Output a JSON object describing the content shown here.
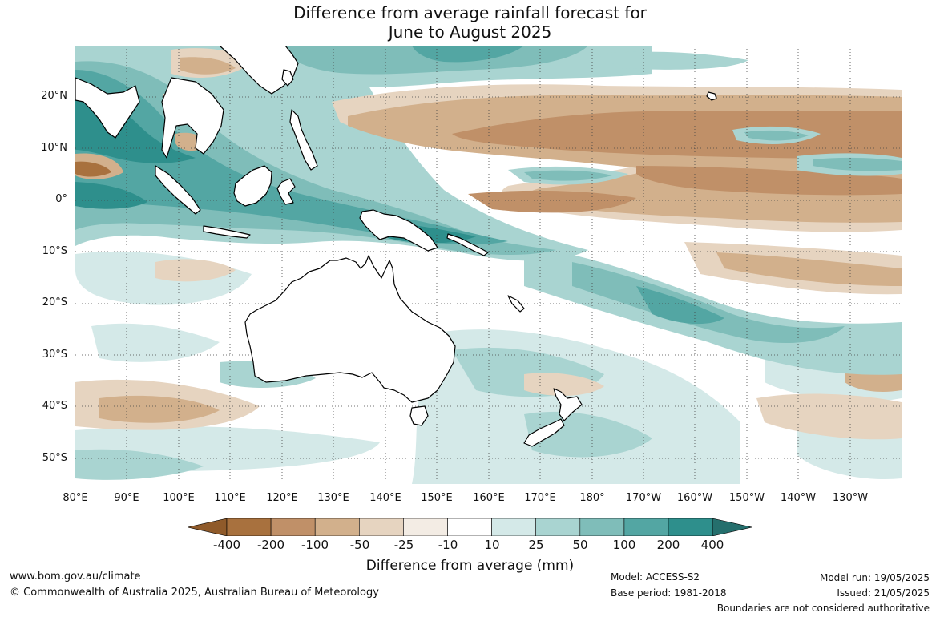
{
  "title_line1": "Difference from average rainfall forecast for",
  "title_line2": "June to August 2025",
  "lat_labels": [
    "20°N",
    "10°N",
    "0°",
    "10°S",
    "20°S",
    "30°S",
    "40°S",
    "50°S"
  ],
  "lon_labels": [
    "80°E",
    "90°E",
    "100°E",
    "110°E",
    "120°E",
    "130°E",
    "140°E",
    "150°E",
    "160°E",
    "170°E",
    "180°",
    "170°W",
    "160°W",
    "150°W",
    "140°W",
    "130°W"
  ],
  "legend": {
    "title": "Difference from average (mm)",
    "ticks": [
      "-400",
      "-200",
      "-100",
      "-50",
      "-25",
      "-10",
      "10",
      "25",
      "50",
      "100",
      "200",
      "400"
    ],
    "colors": [
      "#8f5a2a",
      "#a8713e",
      "#c09068",
      "#d2b08c",
      "#e6d4c0",
      "#f3ece4",
      "#ffffff",
      "#d4e9e8",
      "#a9d4d1",
      "#7fbdb9",
      "#53a6a3",
      "#2e8f8c",
      "#256f6d"
    ]
  },
  "footer": {
    "website": "www.bom.gov.au/climate",
    "copyright": "© Commonwealth of Australia 2025, Australian Bureau of Meteorology",
    "model": "Model: ACCESS-S2",
    "base_period": "Base period: 1981-2018",
    "model_run": "Model run: 19/05/2025",
    "issued": "Issued: 21/05/2025",
    "disclaimer": "Boundaries are not considered authoritative"
  }
}
